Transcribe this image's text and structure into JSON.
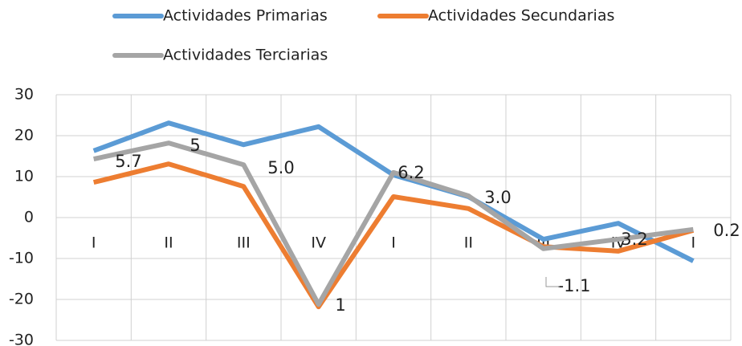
{
  "chart_data": {
    "type": "line",
    "categories": [
      "I",
      "II",
      "III",
      "IV",
      "I",
      "II",
      "III",
      "IV",
      "I"
    ],
    "series": [
      {
        "name": "Actividades Primarias",
        "color": "#5b9bd5",
        "values": [
          16.3,
          23.1,
          17.8,
          22.2,
          10.4,
          5.1,
          -5.3,
          -1.4,
          -10.6
        ]
      },
      {
        "name": "Actividades Secundarias",
        "color": "#ed7d31",
        "values": [
          8.6,
          13.1,
          7.6,
          -21.8,
          5.1,
          2.2,
          -7.1,
          -8.2,
          -3.1
        ]
      },
      {
        "name": "Actividades Terciarias",
        "color": "#a5a5a5",
        "values": [
          14.3,
          18.2,
          12.9,
          -21.2,
          11.0,
          5.3,
          -7.6,
          -5.3,
          -2.9
        ]
      }
    ],
    "annotations": [
      "5.7",
      "5",
      "5.0",
      "1",
      "6.2",
      "3.0",
      "-1.1",
      "3.2",
      "0.2"
    ],
    "ylim": [
      -30,
      30
    ],
    "yticks": [
      -30,
      -20,
      -10,
      0,
      10,
      20,
      30
    ],
    "grid": true
  }
}
